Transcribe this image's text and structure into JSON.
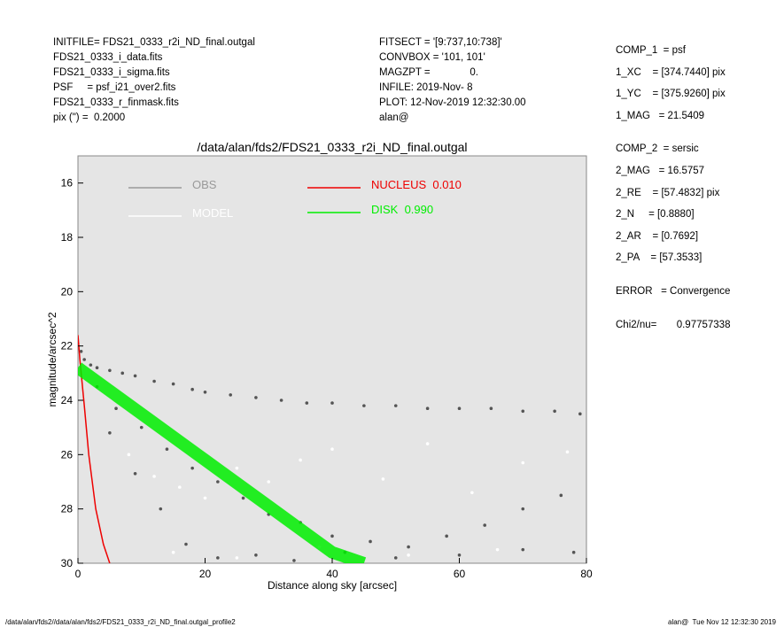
{
  "header": {
    "left": [
      "INITFILE= FDS21_0333_r2i_ND_final.outgal",
      "FDS21_0333_i_data.fits",
      "FDS21_0333_i_sigma.fits",
      "PSF     = psf_i21_over2.fits",
      "FDS21_0333_r_finmask.fits",
      "pix (\") =  0.2000"
    ],
    "middle": [
      "FITSECT = '[9:737,10:738]'",
      "CONVBOX = '101, 101'",
      "MAGZPT =              0.",
      "INFILE: 2019-Nov- 8",
      "PLOT: 12-Nov-2019 12:32:30.00",
      "alan@"
    ],
    "right": [
      "COMP_1  = psf",
      "1_XC    = [374.7440] pix",
      "1_YC    = [375.9260] pix",
      "1_MAG   = 21.5409",
      "COMP_2  = sersic",
      "2_MAG   = 16.5757",
      "2_RE    = [57.4832] pix",
      "2_N     = [0.8880]",
      "2_AR    = [0.7692]",
      "2_PA    = [57.3533]",
      "ERROR   = Convergence",
      "Chi2/nu=       0.97757338"
    ]
  },
  "footer": {
    "left": "/data/alan/fds2//data/alan/fds2/FDS21_0333_r2i_ND_final.outgal_profile2",
    "right": "alan@  Tue Nov 12 12:32:30 2019"
  },
  "chart_data": {
    "type": "scatter",
    "title": "/data/alan/fds2/FDS21_0333_r2i_ND_final.outgal",
    "x_label": "Distance along sky [arcsec]",
    "y_label": "magnitude/arcsec^2",
    "xlim": [
      0,
      80
    ],
    "ylim": [
      30,
      15
    ],
    "xticks": [
      0,
      20,
      40,
      60,
      80
    ],
    "yticks": [
      16,
      18,
      20,
      22,
      24,
      26,
      28,
      30
    ],
    "background": "#e5e5e5",
    "series": [
      {
        "name": "OBS",
        "type": "scatter",
        "color": "#555555",
        "x": [
          0.5,
          1,
          2,
          3,
          5,
          7,
          9,
          12,
          15,
          18,
          20,
          24,
          28,
          32,
          36,
          40,
          45,
          50,
          55,
          60,
          65,
          70,
          75,
          79,
          3,
          6,
          10,
          14,
          18,
          22,
          26,
          30,
          35,
          40,
          46,
          52,
          58,
          64,
          70,
          76,
          5,
          9,
          13,
          17,
          22,
          28,
          34,
          42,
          50,
          60,
          70,
          78
        ],
        "values": [
          22.2,
          22.5,
          22.7,
          22.8,
          22.9,
          23.0,
          23.1,
          23.3,
          23.4,
          23.6,
          23.7,
          23.8,
          23.9,
          24.0,
          24.1,
          24.1,
          24.2,
          24.2,
          24.3,
          24.3,
          24.3,
          24.4,
          24.4,
          24.5,
          23.5,
          24.3,
          25.0,
          25.8,
          26.5,
          27.0,
          27.6,
          28.2,
          28.5,
          29.0,
          29.2,
          29.4,
          29.0,
          28.6,
          28.0,
          27.5,
          25.2,
          26.7,
          28.0,
          29.3,
          29.8,
          29.7,
          29.9,
          29.6,
          29.8,
          29.7,
          29.5,
          29.6
        ]
      },
      {
        "name": "MODEL",
        "type": "scatter",
        "color": "#ffffff",
        "x": [
          8,
          12,
          16,
          20,
          25,
          30,
          35,
          40,
          48,
          55,
          62,
          70,
          77,
          15,
          25,
          38,
          52,
          66
        ],
        "values": [
          26.0,
          26.8,
          27.2,
          27.6,
          26.5,
          27.0,
          26.2,
          25.8,
          26.9,
          25.6,
          27.4,
          26.3,
          25.9,
          29.6,
          29.8,
          29.4,
          29.7,
          29.5
        ]
      },
      {
        "name": "NUCLEUS  0.010",
        "type": "line",
        "color": "#ee0000",
        "x": [
          0,
          0.3,
          1,
          1.7,
          2.8,
          4,
          5
        ],
        "values": [
          21.6,
          22.5,
          24.2,
          26.0,
          28.0,
          29.3,
          30.0
        ]
      },
      {
        "name": "DISK  0.990",
        "type": "band",
        "color": "#00ee00",
        "x": [
          0,
          10,
          20,
          30,
          40,
          45
        ],
        "values": [
          22.8,
          24.5,
          26.2,
          27.9,
          29.6,
          30.0
        ]
      }
    ]
  }
}
